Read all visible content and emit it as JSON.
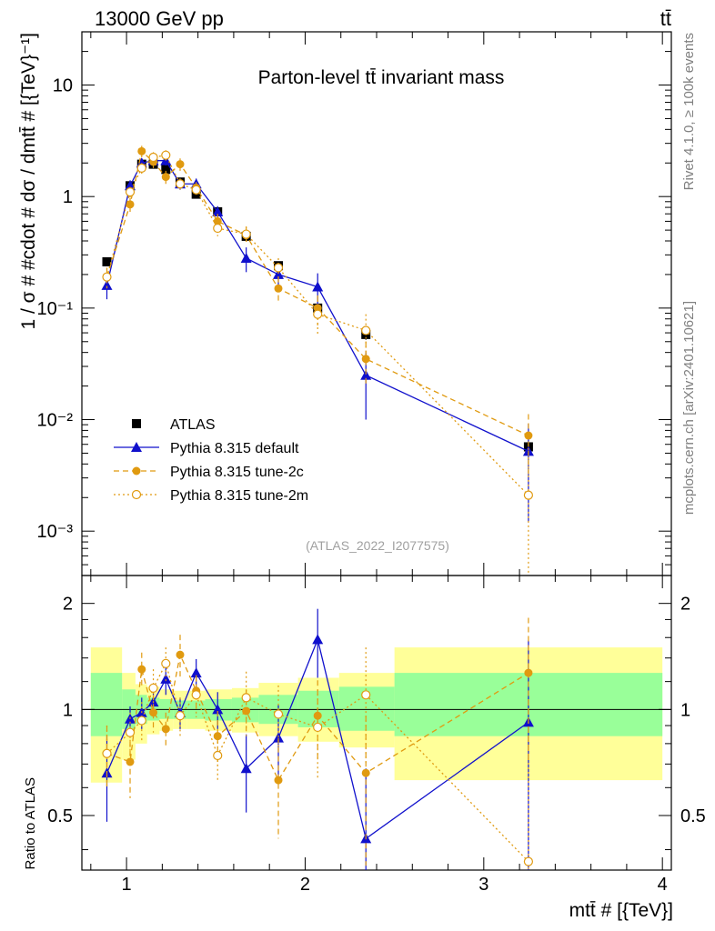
{
  "header": {
    "left": "13000 GeV pp",
    "right": "tt̄"
  },
  "side_labels": {
    "rivet": "Rivet 4.1.0, ≥ 100k events",
    "mcplots": "mcplots.cern.ch [arXiv:2401.10621]"
  },
  "colors": {
    "atlas": "#000000",
    "default": "#1010cc",
    "tune2c": "#e09a10",
    "tune2m": "#e09a10",
    "band_outer": "#ffff99",
    "band_inner": "#99ff99"
  },
  "chart_data": [
    {
      "type": "scatter",
      "title": "Parton-level tt̄ invariant mass",
      "watermark": "(ATLAS_2022_I2077575)",
      "xlabel": "mtt̄ # [{TeV}]",
      "ylabel": "1 / σ # #cdot # dσ / dmtt̄ # [{TeV}⁻¹]",
      "xlim": [
        0.75,
        4.05
      ],
      "ylim": [
        0.0004,
        30
      ],
      "yscale": "log",
      "yticks": [
        {
          "value": 0.001,
          "label": "10⁻³"
        },
        {
          "value": 0.01,
          "label": "10⁻²"
        },
        {
          "value": 0.1,
          "label": "10⁻¹"
        },
        {
          "value": 1,
          "label": "1"
        },
        {
          "value": 10,
          "label": "10"
        }
      ],
      "bin_edges": [
        0.8,
        0.975,
        1.05,
        1.115,
        1.185,
        1.26,
        1.34,
        1.44,
        1.59,
        1.74,
        1.96,
        2.19,
        2.5,
        4.0
      ],
      "series": [
        {
          "name": "ATLAS",
          "style": "square",
          "color": "#000000",
          "x": [
            0.89,
            1.02,
            1.085,
            1.15,
            1.22,
            1.3,
            1.39,
            1.51,
            1.67,
            1.85,
            2.07,
            2.34,
            3.25
          ],
          "y": [
            0.26,
            1.25,
            1.95,
            1.95,
            1.75,
            1.35,
            1.05,
            0.73,
            0.44,
            0.24,
            0.1,
            0.058,
            0.0057
          ],
          "err": [
            0.02,
            0.06,
            0.08,
            0.08,
            0.07,
            0.06,
            0.05,
            0.04,
            0.03,
            0.02,
            0.008,
            0.006,
            0.0008
          ]
        },
        {
          "name": "Pythia 8.315 default",
          "style": "triangle",
          "color": "#1010cc",
          "dash": "",
          "x": [
            0.89,
            1.02,
            1.085,
            1.15,
            1.22,
            1.3,
            1.39,
            1.51,
            1.67,
            1.85,
            2.07,
            2.34,
            3.25
          ],
          "y": [
            0.16,
            1.25,
            2.0,
            2.1,
            2.1,
            1.3,
            1.3,
            0.73,
            0.28,
            0.2,
            0.155,
            0.025,
            0.0052
          ],
          "err": [
            0.04,
            0.15,
            0.2,
            0.2,
            0.2,
            0.15,
            0.15,
            0.09,
            0.07,
            0.05,
            0.05,
            0.015,
            0.004
          ]
        },
        {
          "name": "Pythia 8.315 tune-2c",
          "style": "circle",
          "color": "#e09a10",
          "dash": "6,4",
          "x": [
            0.89,
            1.02,
            1.085,
            1.15,
            1.22,
            1.3,
            1.39,
            1.51,
            1.67,
            1.85,
            2.07,
            2.34,
            3.25
          ],
          "y": [
            0.19,
            0.85,
            2.55,
            2.05,
            1.5,
            1.95,
            1.2,
            0.6,
            0.45,
            0.15,
            0.1,
            0.035,
            0.0072
          ],
          "err": [
            0.04,
            0.12,
            0.3,
            0.25,
            0.2,
            0.25,
            0.15,
            0.1,
            0.08,
            0.04,
            0.03,
            0.015,
            0.004
          ]
        },
        {
          "name": "Pythia 8.315 tune-2m",
          "style": "open-circle",
          "color": "#e09a10",
          "dash": "2,3",
          "x": [
            0.89,
            1.02,
            1.085,
            1.15,
            1.22,
            1.3,
            1.39,
            1.51,
            1.67,
            1.85,
            2.07,
            2.34,
            3.25
          ],
          "y": [
            0.19,
            1.1,
            1.8,
            2.25,
            2.35,
            1.3,
            1.15,
            0.52,
            0.46,
            0.23,
            0.088,
            0.063,
            0.0021
          ],
          "err": [
            0.04,
            0.12,
            0.2,
            0.25,
            0.25,
            0.15,
            0.15,
            0.08,
            0.08,
            0.05,
            0.03,
            0.025,
            0.004
          ]
        }
      ],
      "legend": {
        "position": "bottom-left"
      }
    },
    {
      "type": "scatter",
      "ylabel": "Ratio to ATLAS",
      "xlabel": "mtt̄ # [{TeV}]",
      "xlim": [
        0.75,
        4.05
      ],
      "ylim": [
        0.35,
        2.4
      ],
      "yscale": "log",
      "yticks": [
        {
          "value": 0.5,
          "label": "0.5"
        },
        {
          "value": 1,
          "label": "1"
        },
        {
          "value": 2,
          "label": "2"
        }
      ],
      "xticks": [
        {
          "value": 1,
          "label": "1"
        },
        {
          "value": 2,
          "label": "2"
        },
        {
          "value": 3,
          "label": "3"
        },
        {
          "value": 4,
          "label": "4"
        }
      ],
      "band_outer": [
        [
          0.62,
          1.5
        ],
        [
          0.72,
          1.27
        ],
        [
          0.8,
          1.18
        ],
        [
          0.85,
          1.16
        ],
        [
          0.87,
          1.14
        ],
        [
          0.88,
          1.13
        ],
        [
          0.88,
          1.13
        ],
        [
          0.87,
          1.14
        ],
        [
          0.86,
          1.15
        ],
        [
          0.84,
          1.19
        ],
        [
          0.81,
          1.23
        ],
        [
          0.78,
          1.27
        ],
        [
          0.63,
          1.5
        ]
      ],
      "band_inner": [
        [
          0.84,
          1.27
        ],
        [
          0.88,
          1.14
        ],
        [
          0.91,
          1.1
        ],
        [
          0.93,
          1.08
        ],
        [
          0.94,
          1.07
        ],
        [
          0.94,
          1.06
        ],
        [
          0.94,
          1.06
        ],
        [
          0.93,
          1.07
        ],
        [
          0.92,
          1.08
        ],
        [
          0.91,
          1.1
        ],
        [
          0.89,
          1.13
        ],
        [
          0.87,
          1.16
        ],
        [
          0.84,
          1.27
        ]
      ],
      "series": [
        {
          "name": "Pythia 8.315 default",
          "style": "triangle",
          "color": "#1010cc",
          "dash": "",
          "x": [
            0.89,
            1.02,
            1.085,
            1.15,
            1.22,
            1.3,
            1.39,
            1.51,
            1.67,
            1.85,
            2.07,
            2.34,
            3.25
          ],
          "y": [
            0.66,
            0.94,
            0.98,
            1.05,
            1.22,
            0.98,
            1.27,
            1.0,
            0.68,
            0.83,
            1.58,
            0.43,
            0.92
          ],
          "err": [
            0.18,
            0.08,
            0.1,
            0.1,
            0.12,
            0.1,
            0.12,
            0.12,
            0.17,
            0.2,
            0.35,
            0.25,
            0.65
          ]
        },
        {
          "name": "Pythia 8.315 tune-2c",
          "style": "circle",
          "color": "#e09a10",
          "dash": "6,4",
          "x": [
            0.89,
            1.02,
            1.085,
            1.15,
            1.22,
            1.3,
            1.39,
            1.51,
            1.67,
            1.85,
            2.07,
            2.34,
            3.25
          ],
          "y": [
            0.75,
            0.71,
            1.3,
            0.98,
            0.88,
            1.43,
            1.13,
            0.84,
            0.99,
            0.63,
            0.96,
            0.66,
            1.27
          ],
          "err": [
            0.15,
            0.15,
            0.15,
            0.12,
            0.1,
            0.2,
            0.12,
            0.15,
            0.15,
            0.2,
            0.25,
            0.3,
            0.55
          ]
        },
        {
          "name": "Pythia 8.315 tune-2m",
          "style": "open-circle",
          "color": "#e09a10",
          "dash": "2,3",
          "x": [
            0.89,
            1.02,
            1.085,
            1.15,
            1.22,
            1.3,
            1.39,
            1.51,
            1.67,
            1.85,
            2.07,
            2.34,
            3.25
          ],
          "y": [
            0.75,
            0.86,
            0.93,
            1.15,
            1.35,
            0.96,
            1.1,
            0.74,
            1.08,
            0.97,
            0.89,
            1.1,
            0.37
          ],
          "err": [
            0.15,
            0.12,
            0.12,
            0.15,
            0.15,
            0.12,
            0.15,
            0.12,
            0.2,
            0.2,
            0.25,
            0.4,
            0.7
          ]
        }
      ]
    }
  ]
}
